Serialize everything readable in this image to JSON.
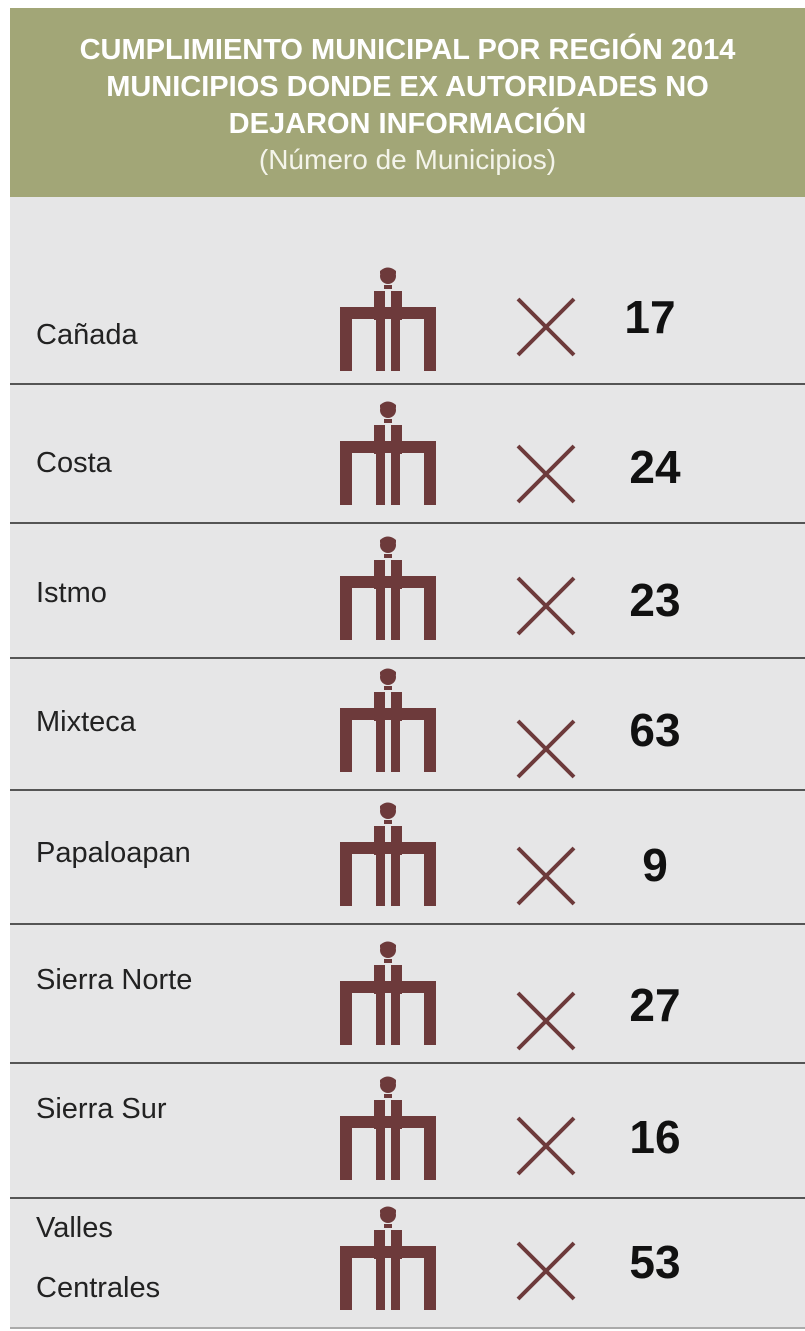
{
  "header": {
    "title_lines": [
      "CUMPLIMIENTO MUNICIPAL POR REGIÓN 2014",
      "MUNICIPIOS DONDE EX AUTORIDADES NO",
      "DEJARON INFORMACIÓN"
    ],
    "subtitle": "(Número de Municipios)"
  },
  "rows": [
    {
      "region": "Cañada",
      "value": 17
    },
    {
      "region": "Costa",
      "value": 24
    },
    {
      "region": "Istmo",
      "value": 23
    },
    {
      "region": "Mixteca",
      "value": 63
    },
    {
      "region": "Papaloapan",
      "value": 9
    },
    {
      "region": "Sierra Norte",
      "value": 27
    },
    {
      "region": "Sierra Sur",
      "value": 16
    },
    {
      "region": "Valles Centrales",
      "value": 53
    }
  ]
}
